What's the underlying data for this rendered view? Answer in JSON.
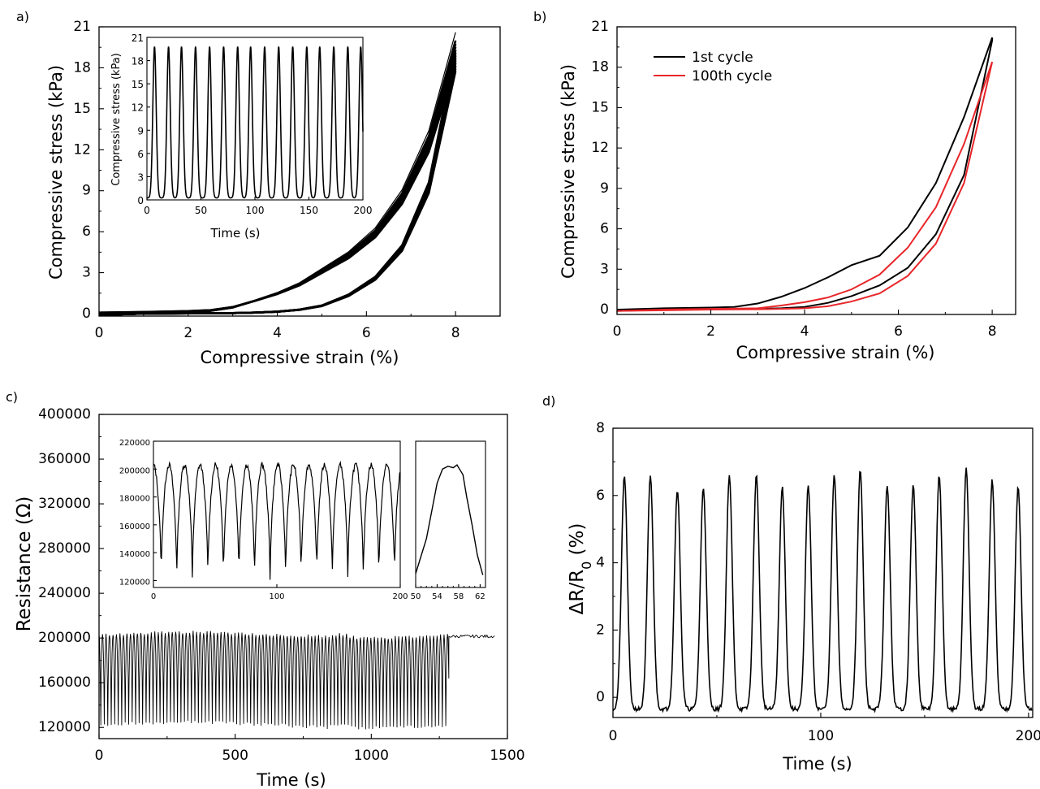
{
  "chart_data": [
    {
      "panel": "a)",
      "type": "line",
      "xlabel": "Compressive strain (%)",
      "ylabel": "Compressive stress (kPa)",
      "xlim": [
        0,
        9
      ],
      "ylim": [
        0,
        21
      ],
      "xticks": [
        "0",
        "2",
        "4",
        "6",
        "8"
      ],
      "yticks": [
        "0",
        "3",
        "6",
        "9",
        "12",
        "15",
        "18",
        "21"
      ],
      "loading_curve": {
        "x": [
          0,
          1,
          2,
          2.5,
          3,
          3.5,
          4,
          4.5,
          5,
          5.6,
          6.2,
          6.8,
          7.4,
          8
        ],
        "y": [
          0,
          0.05,
          0.12,
          0.2,
          0.45,
          0.95,
          1.5,
          2.2,
          3.2,
          4.4,
          6.1,
          8.8,
          13.0,
          20.0
        ]
      },
      "unloading_curve": {
        "x": [
          8,
          7.4,
          6.8,
          6.2,
          5.6,
          5,
          4.5,
          4,
          3.5,
          3,
          2.5,
          2,
          1,
          0
        ],
        "y": [
          19.3,
          9.6,
          5.0,
          2.7,
          1.4,
          0.6,
          0.3,
          0.15,
          0.08,
          0.04,
          0.03,
          0.02,
          0.0,
          -0.1
        ]
      },
      "inset": {
        "type": "line",
        "xlabel": "Time (s)",
        "ylabel": "Compressive stress (kPa)",
        "xlim": [
          0,
          200
        ],
        "ylim": [
          0,
          21
        ],
        "xticks": [
          "0",
          "50",
          "100",
          "150",
          "200"
        ],
        "yticks": [
          "0",
          "3",
          "6",
          "9",
          "12",
          "15",
          "18",
          "21"
        ],
        "cycles": 16,
        "peak_times": [
          7,
          20,
          32,
          45,
          58,
          71,
          84,
          96,
          109,
          122,
          135,
          148,
          160,
          173,
          186,
          198
        ],
        "peak_value": 19.6
      }
    },
    {
      "panel": "b)",
      "type": "line",
      "xlabel": "Compressive strain (%)",
      "ylabel": "Compressive stress (kPa)",
      "xlim": [
        0,
        8.5
      ],
      "ylim": [
        0,
        21
      ],
      "xticks": [
        "0",
        "2",
        "4",
        "6",
        "8"
      ],
      "yticks": [
        "0",
        "3",
        "6",
        "9",
        "12",
        "15",
        "18",
        "21"
      ],
      "legend": "top-left",
      "series": [
        {
          "name": "1st cycle",
          "color": "#000000",
          "x": [
            0,
            1,
            2,
            2.5,
            3,
            3.5,
            4,
            4.5,
            5,
            5.6,
            6.2,
            6.8,
            7.4,
            8,
            8,
            7.4,
            6.8,
            6.2,
            5.6,
            5,
            4.5,
            4,
            3.5,
            3,
            2.5,
            2,
            1,
            0
          ],
          "y": [
            0,
            0.1,
            0.15,
            0.2,
            0.45,
            0.95,
            1.6,
            2.4,
            3.3,
            4.0,
            6.1,
            9.4,
            14.3,
            20.2,
            20.0,
            10.0,
            5.6,
            3.1,
            1.8,
            1.0,
            0.5,
            0.2,
            0.1,
            0.05,
            0.03,
            0.02,
            0.0,
            -0.1
          ]
        },
        {
          "name": "100th cycle",
          "color": "#e8262a",
          "x": [
            0,
            1,
            2,
            3,
            3.5,
            4,
            4.5,
            5,
            5.6,
            6.2,
            6.8,
            7.4,
            8,
            8,
            7.4,
            6.8,
            6.2,
            5.6,
            5,
            4.5,
            4,
            3.5,
            3,
            2,
            1,
            0
          ],
          "y": [
            -0.1,
            0.0,
            0.05,
            0.1,
            0.3,
            0.55,
            0.9,
            1.5,
            2.6,
            4.6,
            7.6,
            12.3,
            18.4,
            18.4,
            9.4,
            4.9,
            2.5,
            1.2,
            0.6,
            0.25,
            0.1,
            0.05,
            0.02,
            0.0,
            -0.05,
            -0.1
          ]
        }
      ]
    },
    {
      "panel": "c)",
      "type": "line",
      "xlabel": "Time (s)",
      "ylabel": "Resistance (Ω)",
      "xlim": [
        0,
        1500
      ],
      "ylim": [
        110000,
        400000
      ],
      "xticks": [
        "0",
        "500",
        "1000",
        "1500"
      ],
      "yticks": [
        "120000",
        "160000",
        "200000",
        "240000",
        "280000",
        "320000",
        "360000",
        "400000"
      ],
      "cycling_end_time": 1285,
      "record_end_time": 1455,
      "period": 12.8,
      "high_level": 203000,
      "low_level": 122000,
      "insets": [
        {
          "type": "line",
          "xlim": [
            0,
            200
          ],
          "ylim": [
            115000,
            220000
          ],
          "xticks": [
            "0",
            "100",
            "200"
          ],
          "yticks": [
            "120000",
            "140000",
            "160000",
            "180000",
            "200000",
            "220000"
          ],
          "cycles": 16,
          "high_level": 203000,
          "low_level": 121000
        },
        {
          "type": "line",
          "xlim": [
            50,
            63
          ],
          "xticks": [
            "50",
            "54",
            "58",
            "62"
          ],
          "x": [
            50.0,
            52.0,
            53.0,
            54.0,
            55.0,
            56.0,
            57.0,
            57.7,
            58.0,
            58.8,
            59.5,
            60.5,
            61.5,
            62.5
          ],
          "y": [
            125000,
            150000,
            170000,
            190000,
            200000,
            202000,
            201000,
            203000,
            201000,
            196000,
            180000,
            160000,
            138000,
            124000
          ]
        }
      ]
    },
    {
      "panel": "d)",
      "type": "line",
      "xlabel": "Time (s)",
      "ylabel": "ΔR/R₀ (%)",
      "xlim": [
        0,
        202
      ],
      "ylim": [
        -0.6,
        8
      ],
      "xticks": [
        "0",
        "100",
        "200"
      ],
      "yticks": [
        "0",
        "2",
        "4",
        "6",
        "8"
      ],
      "baseline": -0.35,
      "peak_times": [
        5.5,
        18,
        31,
        43.5,
        56,
        69,
        81.5,
        94,
        106.5,
        119,
        132,
        144.5,
        157,
        170,
        182.5,
        195
      ],
      "peak_values": [
        6.6,
        6.6,
        6.2,
        6.25,
        6.6,
        6.6,
        6.25,
        6.3,
        6.6,
        6.75,
        6.3,
        6.3,
        6.6,
        6.8,
        6.45,
        6.25
      ]
    }
  ]
}
